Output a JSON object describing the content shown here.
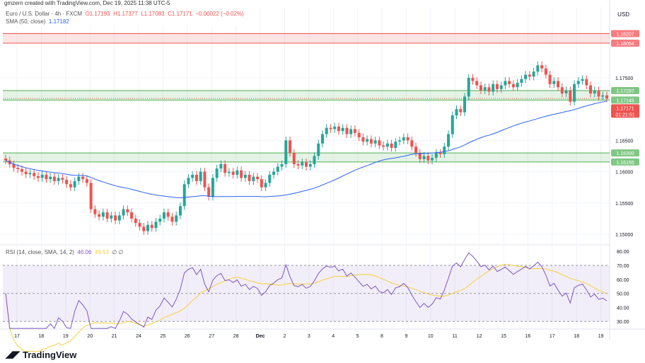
{
  "credit": "gmzern created with TradingView.com, Dec 19, 2025 11:38 UTC-5",
  "currency": "USD",
  "legend": {
    "symbol": "Euro / U.S. Dollar · 4h · FXCM",
    "o": "O1.17193",
    "h": "H1.17377",
    "l": "L1.17083",
    "c": "C1.17171",
    "chg": "−0.00022 (−0.02%)",
    "sma_label": "SMA (50, close)",
    "sma_value": "1.17182"
  },
  "rsi_legend": {
    "label": "RSI (14, close, SMA, 14, 2)",
    "rsi": "46.06",
    "ma": "49.53",
    "extra": "∅ ∅"
  },
  "logo": "TradingView",
  "colors": {
    "up": "#26a69a",
    "down": "#ef5350",
    "sma": "#2962ff",
    "rsi": "#7e57c2",
    "rsi_ma": "#f4d03f"
  },
  "chart_data": {
    "type": "candlestick",
    "timeframe": "4h",
    "y_ticks": [
      "1.15000",
      "1.15500",
      "1.16000",
      "1.16500",
      "1.17500"
    ],
    "ylim": [
      1.146,
      1.1855
    ],
    "x_ticks": [
      "17",
      "18",
      "19",
      "20",
      "21",
      "24",
      "25",
      "26",
      "27",
      "28",
      "Dec",
      "2",
      "3",
      "4",
      "5",
      "8",
      "9",
      "10",
      "11",
      "12",
      "15",
      "16",
      "17",
      "18",
      "19"
    ],
    "closes": [
      1.1618,
      1.1612,
      1.1606,
      1.1604,
      1.16,
      1.1596,
      1.1598,
      1.1593,
      1.159,
      1.1595,
      1.1588,
      1.1592,
      1.1585,
      1.159,
      1.1587,
      1.158,
      1.1575,
      1.1585,
      1.1592,
      1.1588,
      1.1582,
      1.154,
      1.1532,
      1.1528,
      1.1535,
      1.1525,
      1.153,
      1.1522,
      1.153,
      1.154,
      1.1535,
      1.1525,
      1.1518,
      1.1512,
      1.1505,
      1.1515,
      1.151,
      1.152,
      1.1525,
      1.1535,
      1.1528,
      1.152,
      1.153,
      1.1545,
      1.158,
      1.159,
      1.1595,
      1.1585,
      1.16,
      1.1575,
      1.156,
      1.159,
      1.1605,
      1.1612,
      1.1598,
      1.16,
      1.1595,
      1.1602,
      1.159,
      1.1595,
      1.1585,
      1.1592,
      1.1588,
      1.1575,
      1.1582,
      1.1595,
      1.16,
      1.1608,
      1.1612,
      1.165,
      1.163,
      1.1612,
      1.161,
      1.1615,
      1.1608,
      1.1612,
      1.1625,
      1.1645,
      1.166,
      1.167,
      1.1668,
      1.1672,
      1.1665,
      1.167,
      1.166,
      1.1668,
      1.1662,
      1.1655,
      1.1648,
      1.1652,
      1.1645,
      1.165,
      1.1642,
      1.164,
      1.1645,
      1.1638,
      1.1648,
      1.165,
      1.1655,
      1.165,
      1.164,
      1.163,
      1.162,
      1.1625,
      1.1618,
      1.1622,
      1.163,
      1.1628,
      1.164,
      1.166,
      1.169,
      1.17,
      1.1695,
      1.172,
      1.175,
      1.1745,
      1.1738,
      1.173,
      1.1735,
      1.1728,
      1.174,
      1.1732,
      1.1738,
      1.1745,
      1.174,
      1.1735,
      1.1742,
      1.1748,
      1.1755,
      1.1752,
      1.176,
      1.177,
      1.1765,
      1.1755,
      1.174,
      1.1745,
      1.1735,
      1.1725,
      1.173,
      1.1712,
      1.174,
      1.1745,
      1.1748,
      1.1738,
      1.1725,
      1.173,
      1.172,
      1.1722,
      1.1717
    ],
    "zones": [
      {
        "top": "1.18207",
        "bottom": "1.18054",
        "color": "#ef5350"
      },
      {
        "top": "1.17297",
        "bottom": "1.17145",
        "color": "#4caf50"
      },
      {
        "top": "1.16300",
        "bottom": "1.16155",
        "color": "#4caf50"
      }
    ],
    "last_price": "1.17171",
    "countdown": "01:21:51",
    "rsi_ticks": [
      "80.00",
      "70.00",
      "60.00",
      "50.00",
      "40.00",
      "30.00"
    ],
    "rsi_bands": [
      70,
      30
    ]
  }
}
